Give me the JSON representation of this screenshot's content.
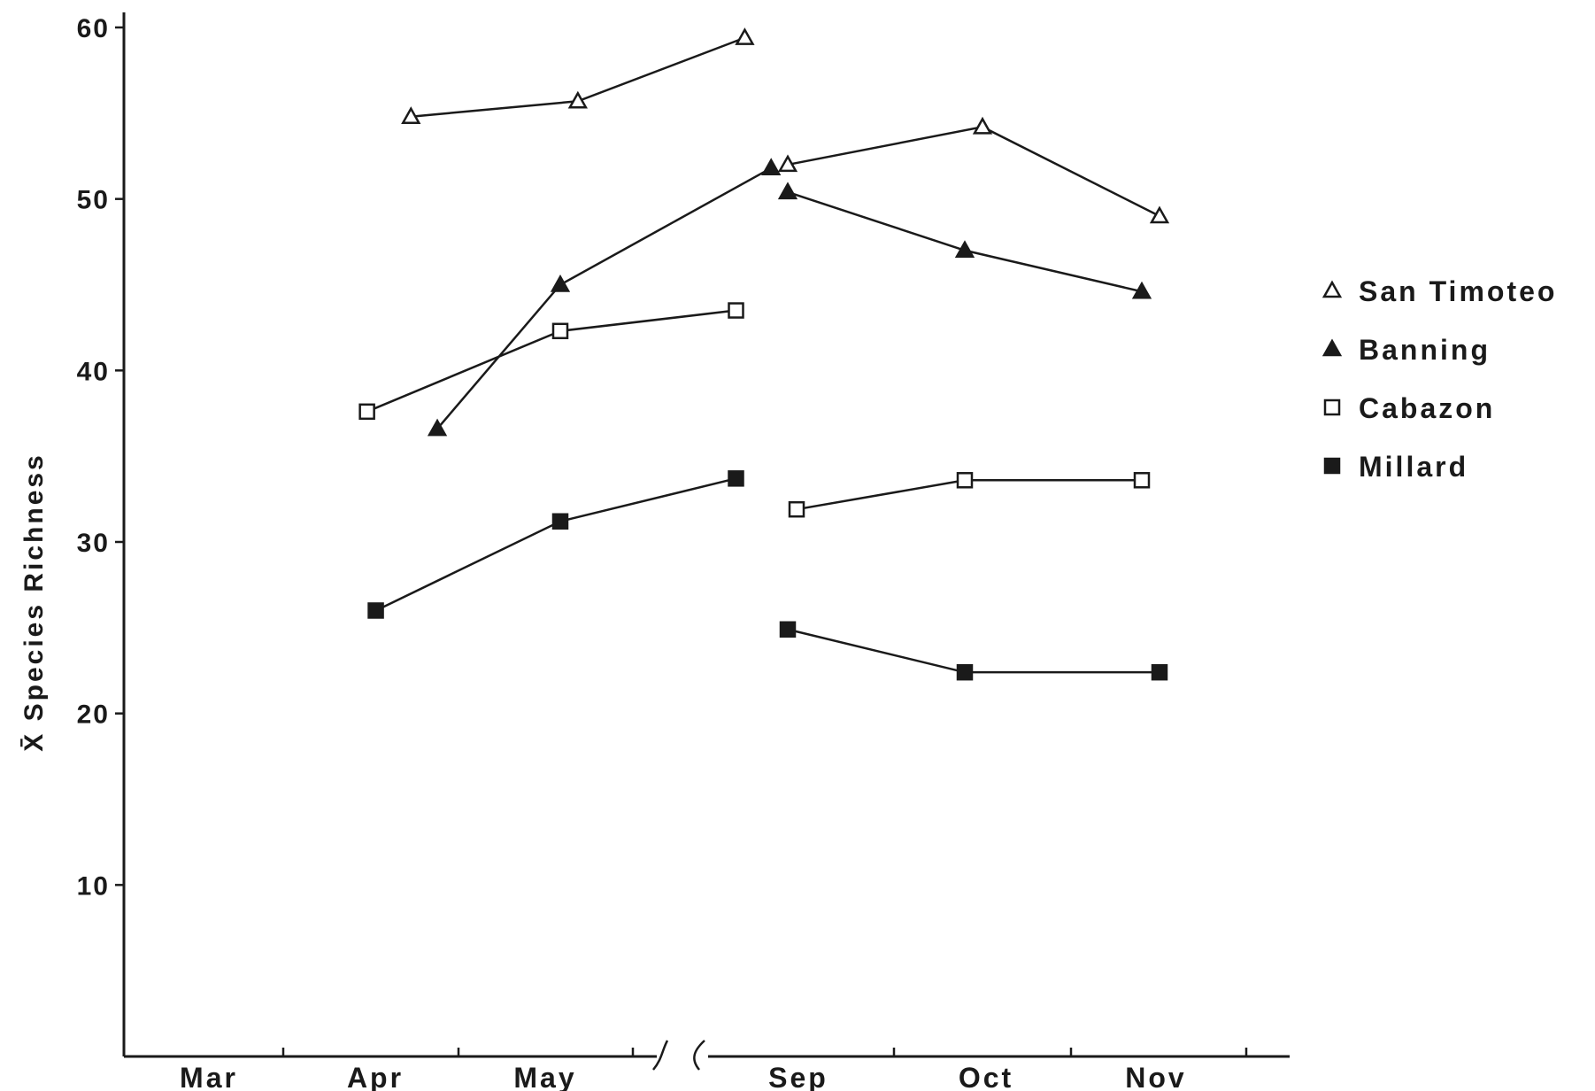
{
  "chart_data": {
    "type": "line",
    "ylabel": "X̄ Species Richness",
    "xlabel": "",
    "title": "",
    "ylim": [
      0,
      60
    ],
    "yticks": [
      10,
      20,
      30,
      40,
      50,
      60
    ],
    "ytick_labels": [
      "10",
      "20",
      "30",
      "40",
      "50",
      "60"
    ],
    "categories": [
      "Mar",
      "Apr",
      "May",
      "Sep",
      "Oct",
      "Nov"
    ],
    "axis_break_between": [
      "May",
      "Sep"
    ],
    "grid": false,
    "legend_position": "right",
    "series": [
      {
        "name": "San Timoteo",
        "marker": "open-triangle",
        "segments": [
          {
            "x": [
              3.15,
              4.1,
              5.05
            ],
            "y": [
              54.8,
              55.7,
              59.4
            ]
          },
          {
            "x": [
              9.0,
              10.1,
              11.1
            ],
            "y": [
              52.0,
              54.2,
              49.0
            ]
          }
        ]
      },
      {
        "name": "Banning",
        "marker": "filled-triangle",
        "segments": [
          {
            "x": [
              3.3,
              4.0,
              5.2
            ],
            "y": [
              36.6,
              45.0,
              51.8
            ]
          },
          {
            "x": [
              9.0,
              10.0,
              11.0
            ],
            "y": [
              50.4,
              47.0,
              44.6
            ]
          }
        ]
      },
      {
        "name": "Cabazon",
        "marker": "open-square",
        "segments": [
          {
            "x": [
              2.9,
              4.0,
              5.0
            ],
            "y": [
              37.6,
              42.3,
              43.5
            ]
          },
          {
            "x": [
              9.05,
              10.0,
              11.0
            ],
            "y": [
              31.9,
              33.6,
              33.6
            ]
          }
        ]
      },
      {
        "name": "Millard",
        "marker": "filled-square",
        "segments": [
          {
            "x": [
              2.95,
              4.0,
              5.0
            ],
            "y": [
              26.0,
              31.2,
              33.7
            ]
          },
          {
            "x": [
              9.0,
              10.0,
              11.1
            ],
            "y": [
              24.9,
              22.4,
              22.4
            ]
          }
        ]
      }
    ]
  }
}
